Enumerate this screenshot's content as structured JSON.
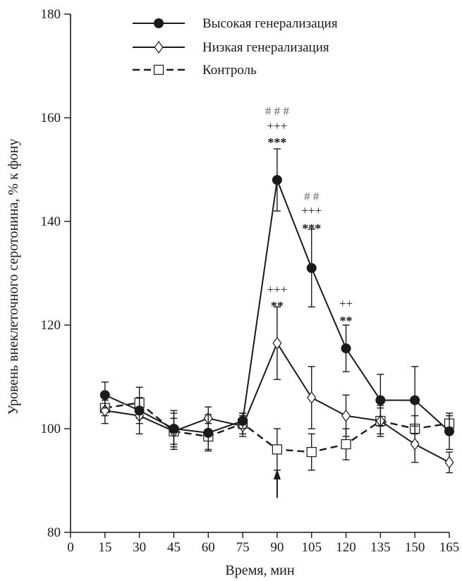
{
  "chart_data": {
    "type": "line",
    "xlabel": "Время, мин",
    "ylabel": "Уровень внеклеточного серотонина, % к фону",
    "xlim": [
      0,
      165
    ],
    "ylim": [
      80,
      180
    ],
    "x_ticks": [
      0,
      15,
      30,
      45,
      60,
      75,
      90,
      105,
      120,
      135,
      150,
      165
    ],
    "y_ticks": [
      80,
      100,
      120,
      140,
      160,
      180
    ],
    "x": [
      15,
      30,
      45,
      60,
      75,
      90,
      105,
      120,
      135,
      150,
      165
    ],
    "legend_position": "top-center",
    "series": [
      {
        "name": "Высокая генерализация",
        "marker": "filled-circle",
        "line_style": "solid",
        "values": [
          106.5,
          103.5,
          100,
          99.2,
          101.5,
          148,
          131,
          115.5,
          105.5,
          105.5,
          99.5
        ],
        "errors": [
          2.5,
          2.5,
          3.5,
          3.5,
          1.5,
          6,
          7.5,
          4.5,
          5,
          6.5,
          3.5
        ]
      },
      {
        "name": "Низкая генерализация",
        "marker": "open-diamond",
        "line_style": "solid",
        "values": [
          103.5,
          102.5,
          99.5,
          102,
          100.5,
          116.5,
          106,
          102.5,
          101.5,
          97,
          93.5
        ],
        "errors": [
          2.5,
          3.5,
          3.5,
          2.2,
          2,
          7,
          6,
          4,
          3,
          3.5,
          2
        ]
      },
      {
        "name": "Контроль",
        "marker": "open-square",
        "line_style": "dashed",
        "values": [
          104,
          105,
          99.5,
          98.5,
          101,
          96,
          95.5,
          97,
          101.5,
          100,
          101
        ],
        "errors": [
          1.5,
          3,
          2.5,
          2.5,
          2,
          4,
          3.5,
          3,
          2.5,
          2.5,
          1.5
        ]
      }
    ],
    "annotations": [
      {
        "x": 90,
        "line1": "# # #",
        "line2": "+++",
        "line3": "***"
      },
      {
        "x": 105,
        "line1": "# #",
        "line2": "+++",
        "line3": "***"
      },
      {
        "x": 90,
        "line1": "",
        "line2": "+++",
        "line3": "**"
      },
      {
        "x": 120,
        "line1": "",
        "line2": "++",
        "line3": "**"
      }
    ],
    "arrow_at_x": 90
  }
}
